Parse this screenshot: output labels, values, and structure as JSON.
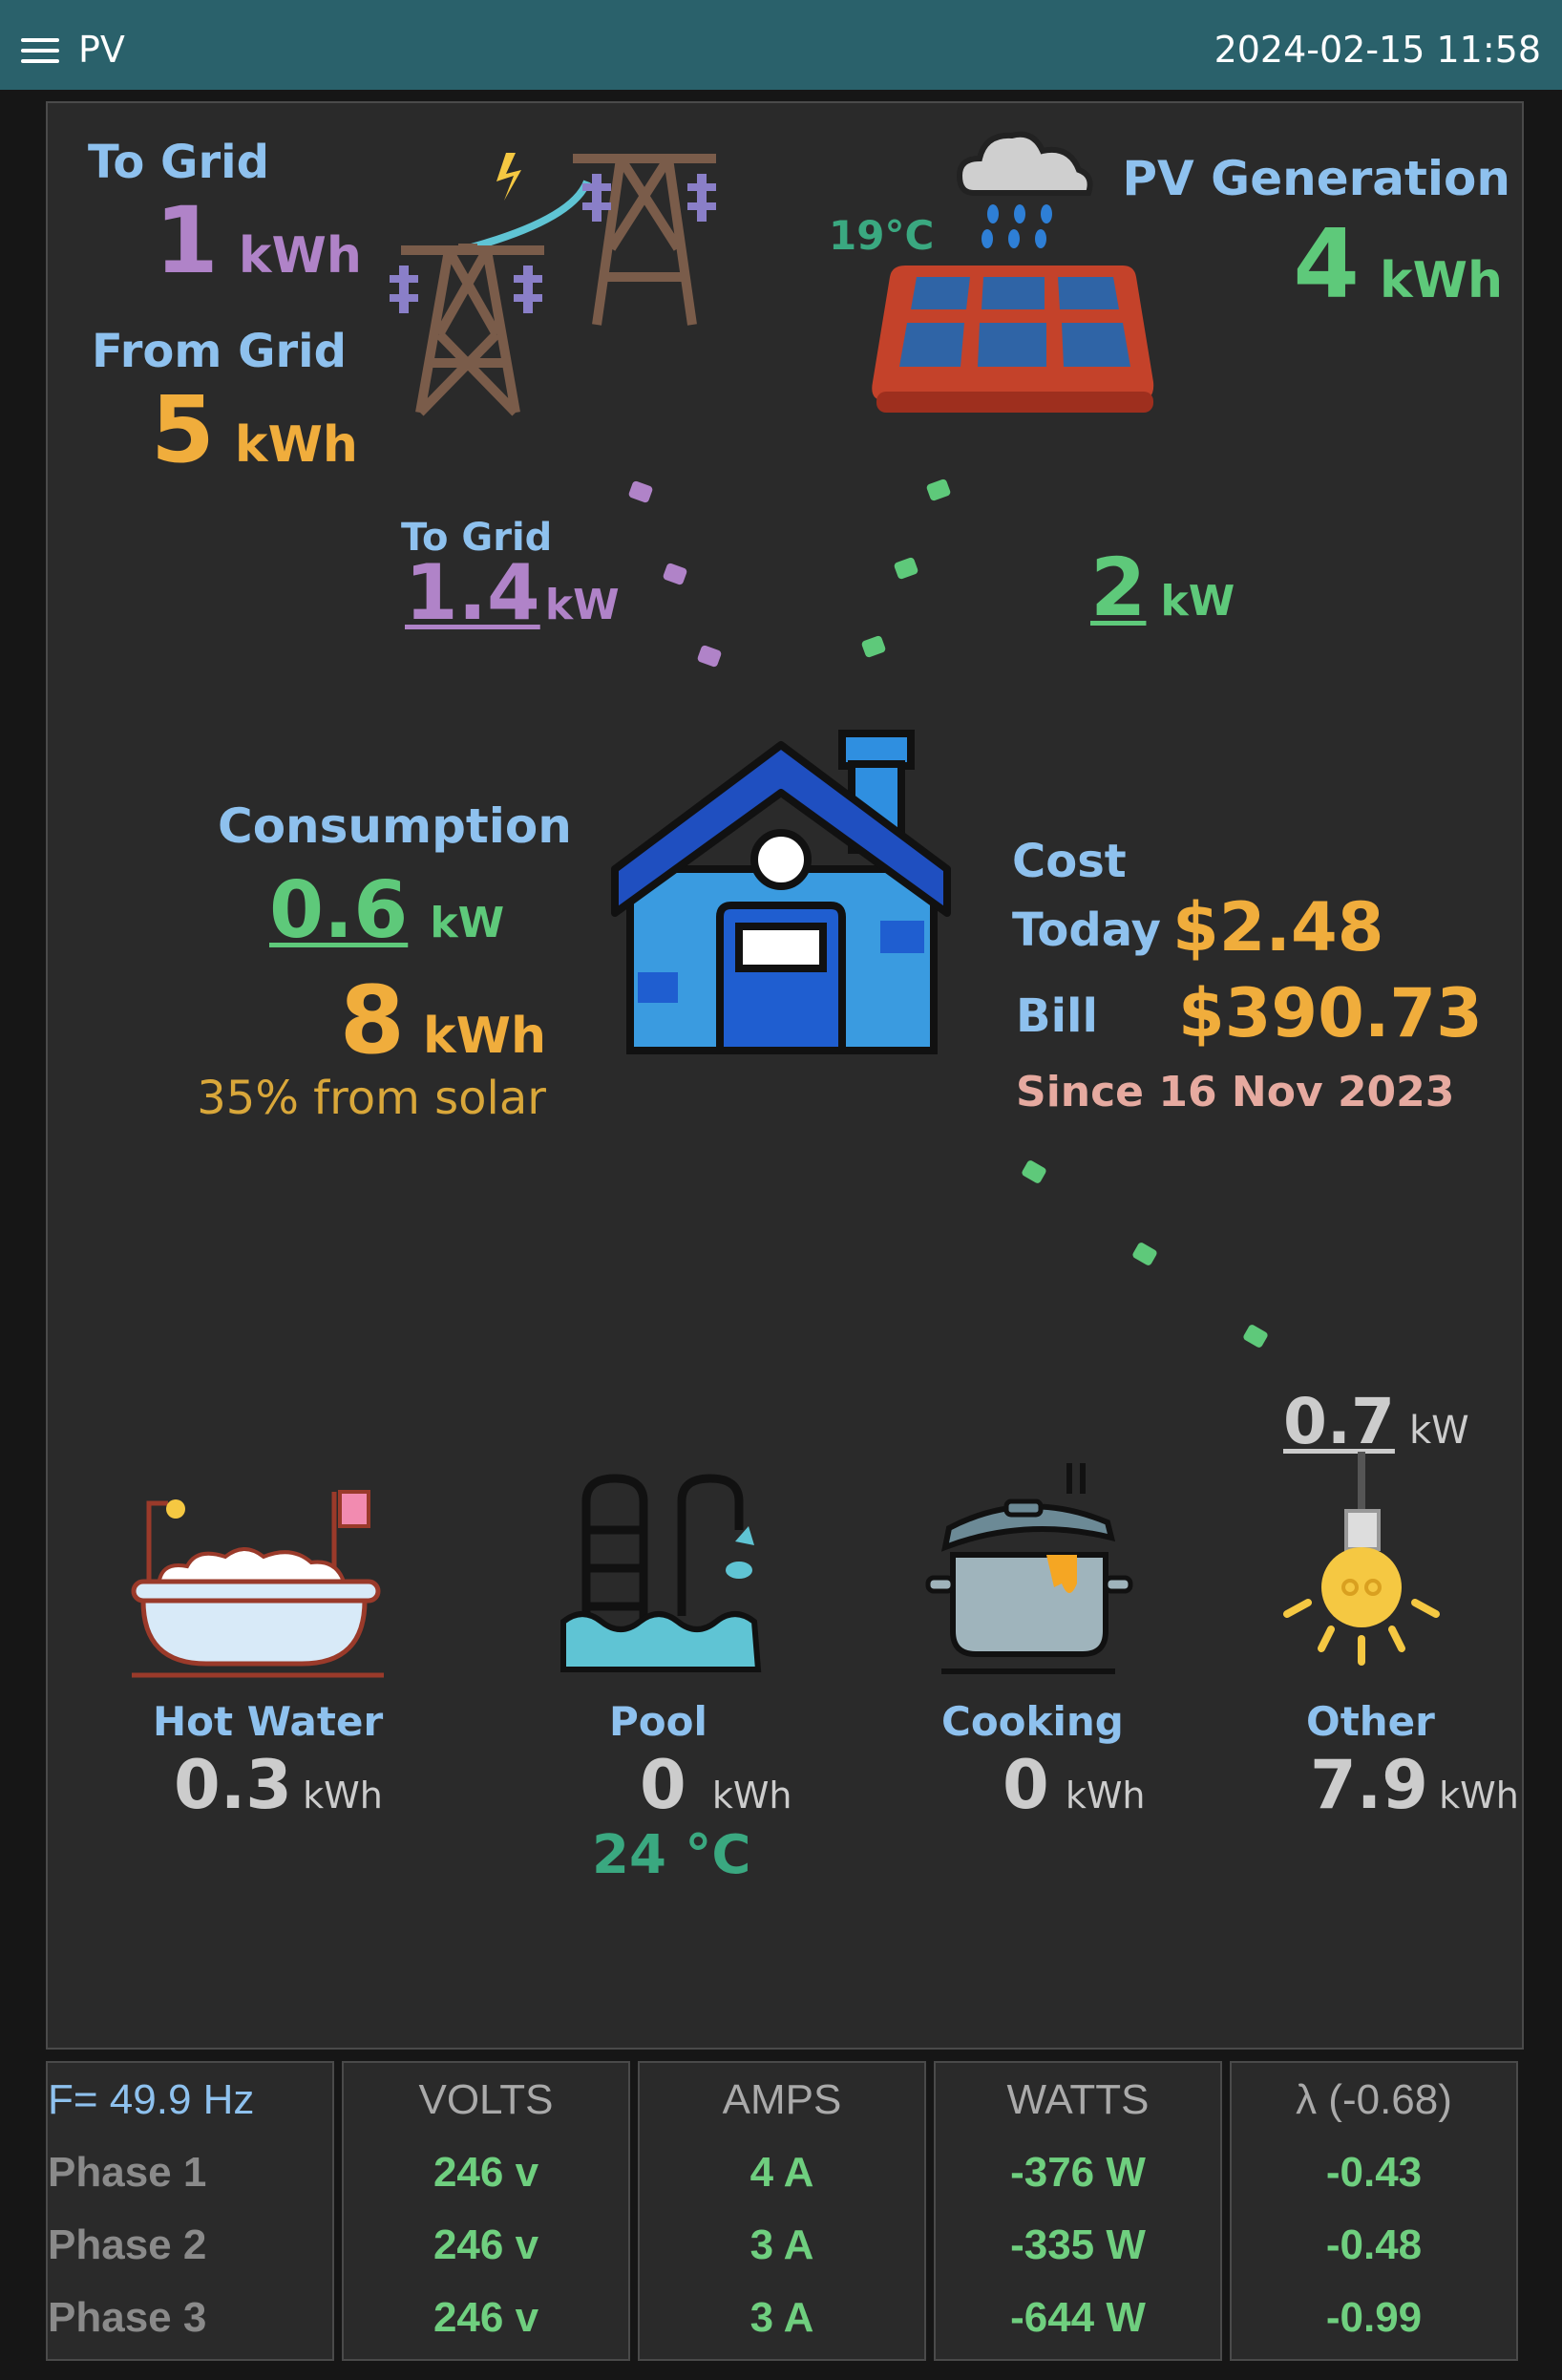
{
  "header": {
    "title": "PV",
    "datetime": "2024-02-15 11:58"
  },
  "grid": {
    "to_grid_label": "To Grid",
    "to_grid_value": "1",
    "to_grid_unit": "kWh",
    "from_grid_label": "From Grid",
    "from_grid_value": "5",
    "from_grid_unit": "kWh",
    "flow_label": "To Grid",
    "flow_value": "1.4",
    "flow_unit": "kW"
  },
  "pv": {
    "label": "PV Generation",
    "value": "4",
    "unit": "kWh",
    "temperature": "19°C",
    "flow_value": "2",
    "flow_unit": "kW"
  },
  "consumption": {
    "label": "Consumption",
    "power": "0.6",
    "power_unit": "kW",
    "energy": "8",
    "energy_unit": "kWh",
    "solar_share": "35% from solar"
  },
  "cost": {
    "label": "Cost",
    "today_label": "Today",
    "today_value": "$2.48",
    "bill_label": "Bill",
    "bill_value": "$390.73",
    "since": "Since 16 Nov 2023"
  },
  "loads": {
    "other_power": "0.7",
    "other_power_unit": "kW",
    "items": [
      {
        "label": "Hot Water",
        "value": "0.3",
        "unit": "kWh"
      },
      {
        "label": "Pool",
        "value": "0",
        "unit": "kWh",
        "extra": "24 °C"
      },
      {
        "label": "Cooking",
        "value": "0",
        "unit": "kWh"
      },
      {
        "label": "Other",
        "value": "7.9",
        "unit": "kWh"
      }
    ]
  },
  "table": {
    "frequency": "F= 49.9 Hz",
    "headers": [
      "VOLTS",
      "AMPS",
      "WATTS",
      "λ (-0.68)"
    ],
    "rows": [
      {
        "phase": "Phase 1",
        "volts": "246 v",
        "amps": "4 A",
        "watts": "-376 W",
        "pf": "-0.43"
      },
      {
        "phase": "Phase 2",
        "volts": "246 v",
        "amps": "3 A",
        "watts": "-335 W",
        "pf": "-0.48"
      },
      {
        "phase": "Phase 3",
        "volts": "246 v",
        "amps": "3 A",
        "watts": "-644 W",
        "pf": "-0.99"
      }
    ]
  },
  "colors": {
    "purple": "#b083c8",
    "green": "#5ec97a",
    "orange": "#f0ad3c",
    "label": "#8ec1ee"
  }
}
